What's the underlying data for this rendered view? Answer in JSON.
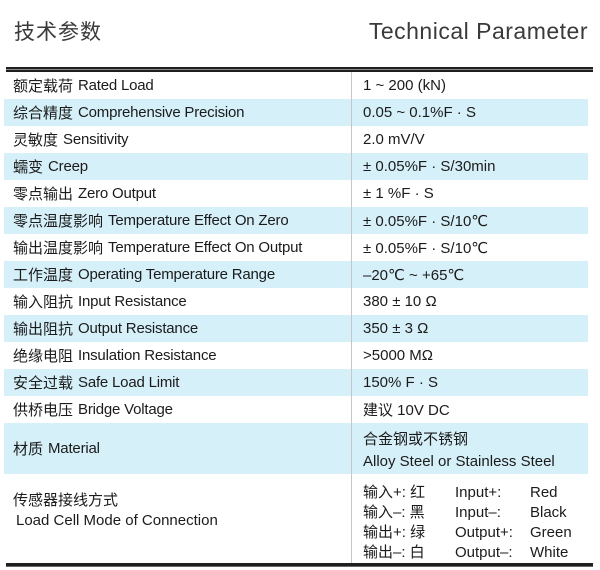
{
  "header": {
    "title_zh": "技术参数",
    "title_en": "Technical Parameter"
  },
  "table": {
    "rows": [
      {
        "zh": "额定载荷",
        "en": "Rated Load",
        "value": "1 ~ 200 (kN)"
      },
      {
        "zh": "综合精度",
        "en": "Comprehensive Precision",
        "value": "0.05 ~ 0.1%F · S"
      },
      {
        "zh": "灵敏度",
        "en": "Sensitivity",
        "value": "2.0 mV/V"
      },
      {
        "zh": "蠕变",
        "en": "Creep",
        "value": "± 0.05%F · S/30min"
      },
      {
        "zh": "零点输出",
        "en": "Zero Output",
        "value": "± 1 %F · S"
      },
      {
        "zh": "零点温度影响",
        "en": "Temperature Effect On Zero",
        "value": "± 0.05%F · S/10℃"
      },
      {
        "zh": "输出温度影响",
        "en": "Temperature Effect On Output",
        "value": "± 0.05%F · S/10℃"
      },
      {
        "zh": "工作温度",
        "en": "Operating Temperature Range",
        "value": "–20℃ ~ +65℃"
      },
      {
        "zh": "输入阻抗",
        "en": "Input Resistance",
        "value": "380 ± 10 Ω"
      },
      {
        "zh": "输出阻抗",
        "en": "Output Resistance",
        "value": "350 ± 3 Ω"
      },
      {
        "zh": "绝缘电阻",
        "en": "Insulation Resistance",
        "value": ">5000 MΩ"
      },
      {
        "zh": "安全过载",
        "en": "Safe Load Limit",
        "value": "150% F · S"
      },
      {
        "zh": "供桥电压",
        "en": "Bridge Voltage",
        "value": "建议 10V DC"
      }
    ],
    "material": {
      "zh": "材质",
      "en": "Material",
      "value_zh": "合金钢或不锈钢",
      "value_en": "Alloy Steel or Stainless Steel"
    },
    "connection": {
      "zh": "传感器接线方式",
      "en": "Load Cell Mode of Connection",
      "wires": [
        {
          "zh": "输入+: 红",
          "en": "Input+:",
          "color": "Red"
        },
        {
          "zh": "输入–: 黑",
          "en": "Input–:",
          "color": "Black"
        },
        {
          "zh": "输出+: 绿",
          "en": "Output+:",
          "color": "Green"
        },
        {
          "zh": "输出–: 白",
          "en": "Output–:",
          "color": "White"
        }
      ]
    }
  },
  "colors": {
    "shade": "#d6f0f9",
    "rule": "#1f1f1f",
    "divider": "#c6c6c6"
  }
}
